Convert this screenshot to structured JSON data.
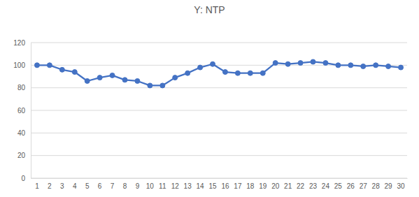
{
  "chart_data": {
    "type": "line",
    "title": "Y: NTP",
    "categories": [
      "1",
      "2",
      "3",
      "4",
      "5",
      "6",
      "7",
      "8",
      "9",
      "10",
      "11",
      "12",
      "13",
      "14",
      "15",
      "16",
      "17",
      "18",
      "19",
      "20",
      "21",
      "22",
      "23",
      "24",
      "25",
      "26",
      "27",
      "28",
      "29",
      "30"
    ],
    "values": [
      100,
      100,
      96,
      94,
      86,
      89,
      91,
      87,
      86,
      82,
      82,
      89,
      93,
      98,
      101,
      94,
      93,
      93,
      93,
      102,
      101,
      102,
      103,
      102,
      100,
      100,
      99,
      100,
      99,
      98
    ],
    "color": "#4472c4",
    "marker": "circle",
    "ylim": [
      0,
      120
    ],
    "yticks": [
      0,
      20,
      40,
      60,
      80,
      100,
      120
    ],
    "grid": true
  }
}
